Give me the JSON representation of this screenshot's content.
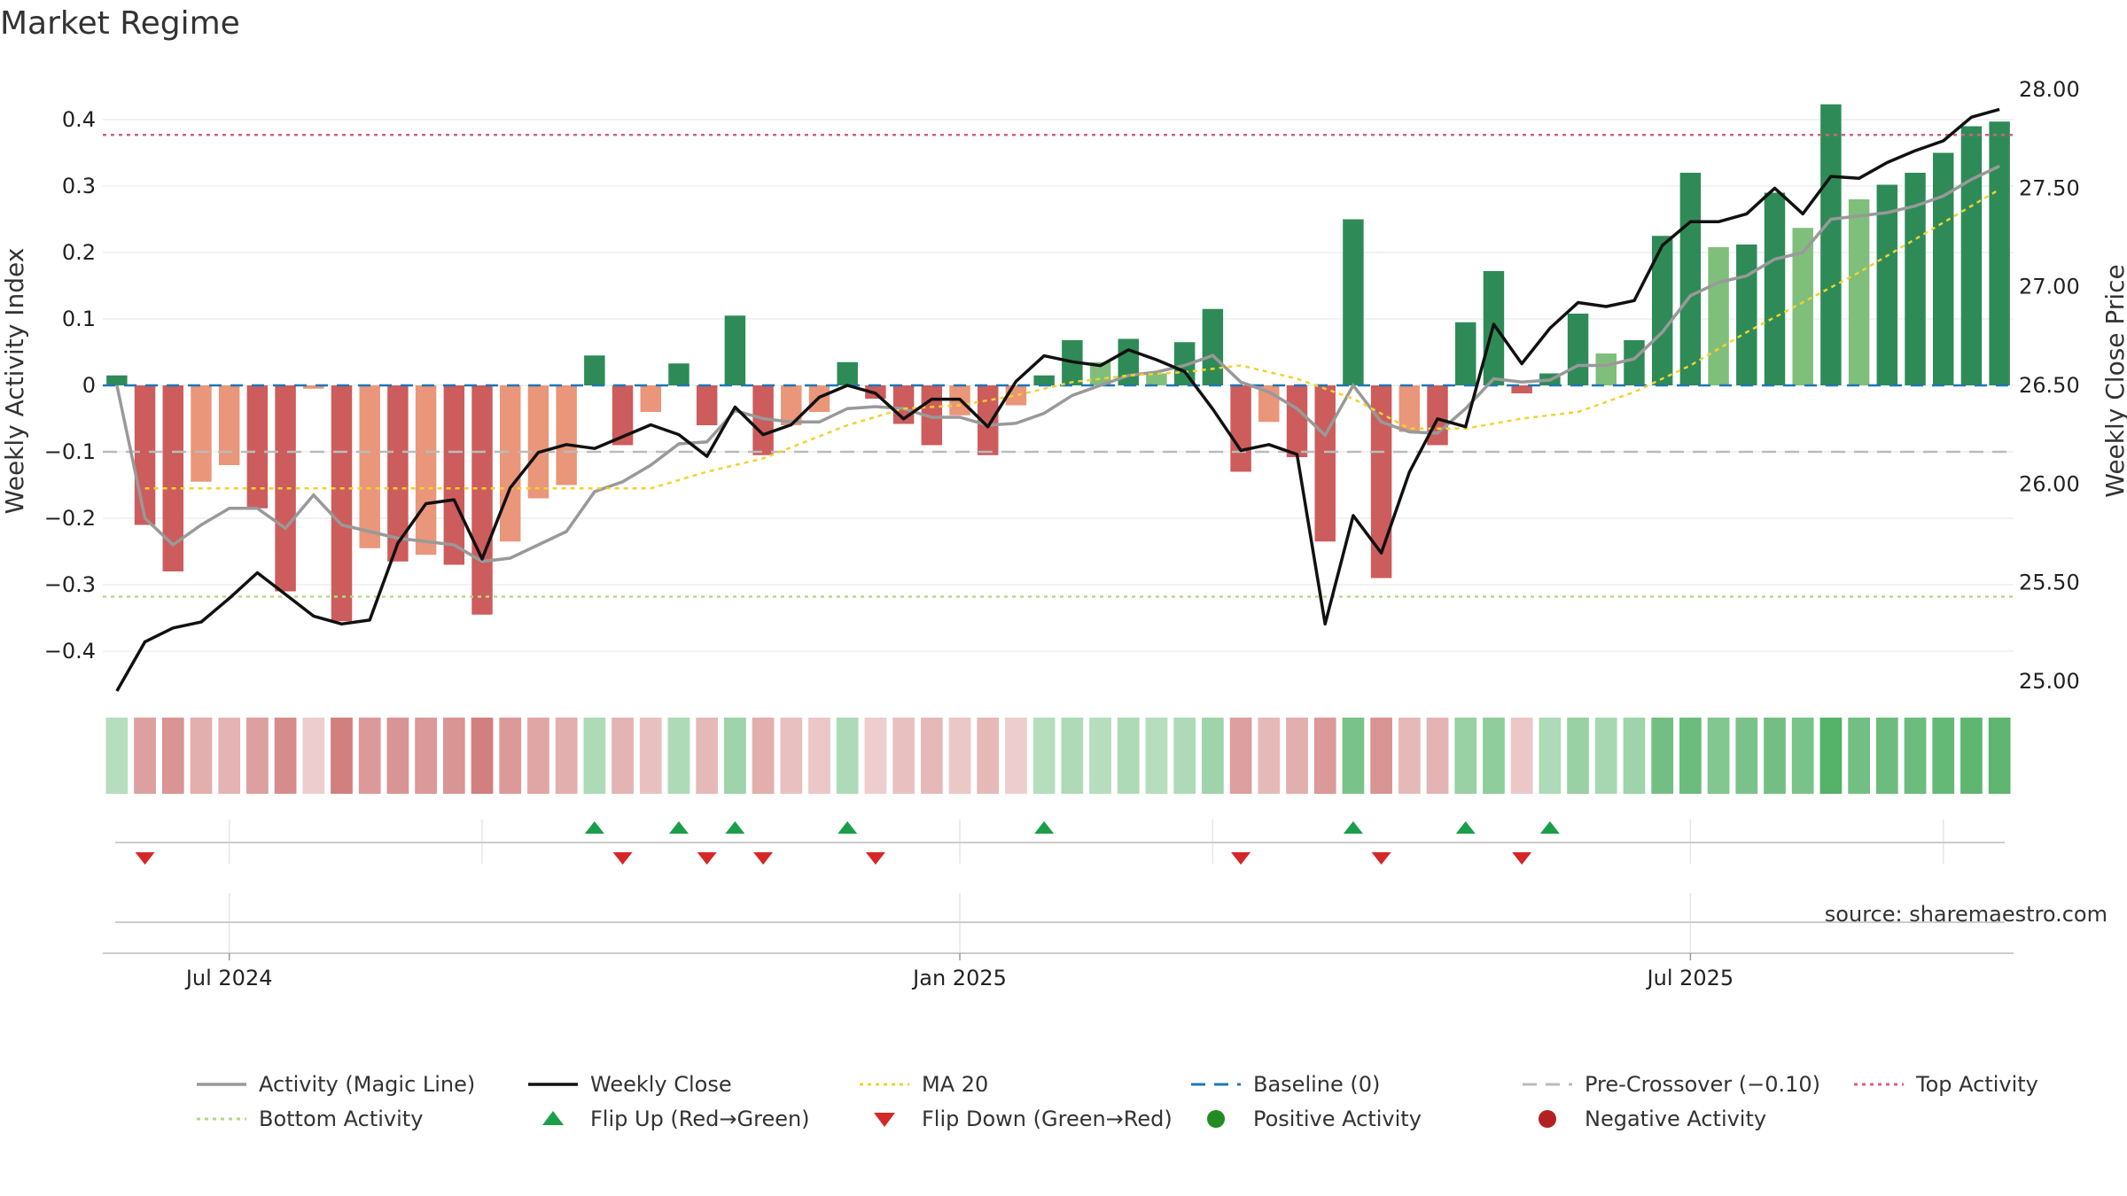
{
  "title": "Market Regime",
  "source": "source: sharemaestro.com",
  "colors": {
    "strong_green": "#2e8b57",
    "light_green": "#7fbf7b",
    "strong_red": "#cd5c5c",
    "light_red": "#e9967a",
    "activity_line": "#999999",
    "close_line": "#111111",
    "ma_line": "#f2d22e",
    "baseline": "#1f77b4",
    "pre_crossover": "#bbbbbb",
    "top_activity": "#d9607a",
    "bottom_activity": "#b5d98a",
    "flip_up": "#1a9e4a",
    "flip_down": "#d62728",
    "positive_dot": "#228b22",
    "negative_dot": "#b22222"
  },
  "chart_data": {
    "type": "bar",
    "title": "Market Regime",
    "ylabel": "Weekly Activity Index",
    "y2label": "Weekly Close Price",
    "ylim": [
      -0.46,
      0.46
    ],
    "y2lim": [
      24.95,
      28.05
    ],
    "yticks": [
      {
        "v": -0.4,
        "t": "−0.4"
      },
      {
        "v": -0.3,
        "t": "−0.3"
      },
      {
        "v": -0.2,
        "t": "−0.2"
      },
      {
        "v": -0.1,
        "t": "−0.1"
      },
      {
        "v": 0,
        "t": "0"
      },
      {
        "v": 0.1,
        "t": "0.1"
      },
      {
        "v": 0.2,
        "t": "0.2"
      },
      {
        "v": 0.3,
        "t": "0.3"
      },
      {
        "v": 0.4,
        "t": "0.4"
      }
    ],
    "y2ticks": [
      {
        "v": 25.0,
        "t": "25.00"
      },
      {
        "v": 25.5,
        "t": "25.50"
      },
      {
        "v": 26.0,
        "t": "26.00"
      },
      {
        "v": 26.5,
        "t": "26.50"
      },
      {
        "v": 27.0,
        "t": "27.00"
      },
      {
        "v": 27.5,
        "t": "27.50"
      },
      {
        "v": 28.0,
        "t": "28.00"
      }
    ],
    "xticks": [
      {
        "i": 4,
        "t": "Jul 2024"
      },
      {
        "i": 30,
        "t": "Jan 2025"
      },
      {
        "i": 56,
        "t": "Jul 2025"
      }
    ],
    "bars": [
      {
        "v": 0.015,
        "c": "strong_green"
      },
      {
        "v": -0.21,
        "c": "strong_red"
      },
      {
        "v": -0.28,
        "c": "strong_red"
      },
      {
        "v": -0.145,
        "c": "light_red"
      },
      {
        "v": -0.12,
        "c": "light_red"
      },
      {
        "v": -0.185,
        "c": "strong_red"
      },
      {
        "v": -0.31,
        "c": "strong_red"
      },
      {
        "v": -0.005,
        "c": "light_red"
      },
      {
        "v": -0.355,
        "c": "strong_red"
      },
      {
        "v": -0.245,
        "c": "light_red"
      },
      {
        "v": -0.265,
        "c": "strong_red"
      },
      {
        "v": -0.255,
        "c": "light_red"
      },
      {
        "v": -0.27,
        "c": "strong_red"
      },
      {
        "v": -0.345,
        "c": "strong_red"
      },
      {
        "v": -0.235,
        "c": "light_red"
      },
      {
        "v": -0.17,
        "c": "light_red"
      },
      {
        "v": -0.15,
        "c": "light_red"
      },
      {
        "v": 0.045,
        "c": "strong_green"
      },
      {
        "v": -0.09,
        "c": "strong_red"
      },
      {
        "v": -0.04,
        "c": "light_red"
      },
      {
        "v": 0.033,
        "c": "strong_green"
      },
      {
        "v": -0.06,
        "c": "strong_red"
      },
      {
        "v": 0.105,
        "c": "strong_green"
      },
      {
        "v": -0.105,
        "c": "strong_red"
      },
      {
        "v": -0.06,
        "c": "light_red"
      },
      {
        "v": -0.04,
        "c": "light_red"
      },
      {
        "v": 0.035,
        "c": "strong_green"
      },
      {
        "v": -0.02,
        "c": "strong_red"
      },
      {
        "v": -0.058,
        "c": "strong_red"
      },
      {
        "v": -0.09,
        "c": "strong_red"
      },
      {
        "v": -0.045,
        "c": "light_red"
      },
      {
        "v": -0.105,
        "c": "strong_red"
      },
      {
        "v": -0.03,
        "c": "light_red"
      },
      {
        "v": 0.015,
        "c": "strong_green"
      },
      {
        "v": 0.068,
        "c": "strong_green"
      },
      {
        "v": 0.035,
        "c": "light_green"
      },
      {
        "v": 0.07,
        "c": "strong_green"
      },
      {
        "v": 0.018,
        "c": "light_green"
      },
      {
        "v": 0.065,
        "c": "strong_green"
      },
      {
        "v": 0.115,
        "c": "strong_green"
      },
      {
        "v": -0.13,
        "c": "strong_red"
      },
      {
        "v": -0.055,
        "c": "light_red"
      },
      {
        "v": -0.108,
        "c": "strong_red"
      },
      {
        "v": -0.235,
        "c": "strong_red"
      },
      {
        "v": 0.25,
        "c": "strong_green"
      },
      {
        "v": -0.29,
        "c": "strong_red"
      },
      {
        "v": -0.07,
        "c": "light_red"
      },
      {
        "v": -0.09,
        "c": "strong_red"
      },
      {
        "v": 0.095,
        "c": "strong_green"
      },
      {
        "v": 0.172,
        "c": "strong_green"
      },
      {
        "v": -0.012,
        "c": "strong_red"
      },
      {
        "v": 0.018,
        "c": "strong_green"
      },
      {
        "v": 0.108,
        "c": "strong_green"
      },
      {
        "v": 0.048,
        "c": "light_green"
      },
      {
        "v": 0.068,
        "c": "strong_green"
      },
      {
        "v": 0.225,
        "c": "strong_green"
      },
      {
        "v": 0.32,
        "c": "strong_green"
      },
      {
        "v": 0.208,
        "c": "light_green"
      },
      {
        "v": 0.212,
        "c": "strong_green"
      },
      {
        "v": 0.29,
        "c": "strong_green"
      },
      {
        "v": 0.237,
        "c": "light_green"
      },
      {
        "v": 0.423,
        "c": "strong_green"
      },
      {
        "v": 0.28,
        "c": "light_green"
      },
      {
        "v": 0.302,
        "c": "strong_green"
      },
      {
        "v": 0.32,
        "c": "strong_green"
      },
      {
        "v": 0.35,
        "c": "strong_green"
      },
      {
        "v": 0.39,
        "c": "strong_green"
      },
      {
        "v": 0.397,
        "c": "strong_green"
      }
    ],
    "activity_line": [
      0.0,
      -0.2,
      -0.24,
      -0.21,
      -0.185,
      -0.185,
      -0.215,
      -0.165,
      -0.21,
      -0.22,
      -0.23,
      -0.235,
      -0.24,
      -0.265,
      -0.26,
      -0.24,
      -0.22,
      -0.16,
      -0.145,
      -0.12,
      -0.088,
      -0.085,
      -0.038,
      -0.05,
      -0.055,
      -0.055,
      -0.035,
      -0.032,
      -0.035,
      -0.048,
      -0.048,
      -0.06,
      -0.057,
      -0.042,
      -0.015,
      0.0,
      0.015,
      0.02,
      0.03,
      0.045,
      0.005,
      -0.01,
      -0.035,
      -0.075,
      0.0,
      -0.055,
      -0.07,
      -0.072,
      -0.035,
      0.01,
      0.005,
      0.008,
      0.03,
      0.03,
      0.04,
      0.08,
      0.135,
      0.155,
      0.165,
      0.19,
      0.2,
      0.25,
      0.255,
      0.26,
      0.27,
      0.285,
      0.31,
      0.33
    ],
    "weekly_close": [
      24.95,
      25.2,
      25.27,
      25.3,
      25.42,
      25.55,
      25.44,
      25.33,
      25.29,
      25.31,
      25.7,
      25.9,
      25.92,
      25.62,
      25.98,
      26.16,
      26.2,
      26.18,
      26.24,
      26.3,
      26.25,
      26.14,
      26.39,
      26.25,
      26.3,
      26.44,
      26.5,
      26.46,
      26.33,
      26.43,
      26.43,
      26.29,
      26.52,
      26.65,
      26.62,
      26.6,
      26.68,
      26.63,
      26.57,
      26.38,
      26.17,
      26.2,
      26.15,
      25.29,
      25.84,
      25.65,
      26.06,
      26.33,
      26.29,
      26.81,
      26.61,
      26.79,
      26.92,
      26.9,
      26.93,
      27.21,
      27.33,
      27.33,
      27.37,
      27.5,
      27.37,
      27.56,
      27.55,
      27.63,
      27.69,
      27.74,
      27.86,
      27.9
    ],
    "ma20": [
      {
        "i": 1,
        "v": -0.155
      },
      {
        "i": 19,
        "v": -0.155
      },
      {
        "i": 21,
        "v": -0.13
      },
      {
        "i": 23,
        "v": -0.11
      },
      {
        "i": 26,
        "v": -0.06
      },
      {
        "i": 28,
        "v": -0.035
      },
      {
        "i": 30,
        "v": -0.03
      },
      {
        "i": 32,
        "v": -0.015
      },
      {
        "i": 34,
        "v": 0.005
      },
      {
        "i": 36,
        "v": 0.015
      },
      {
        "i": 38,
        "v": 0.02
      },
      {
        "i": 40,
        "v": 0.03
      },
      {
        "i": 42,
        "v": 0.01
      },
      {
        "i": 44,
        "v": -0.02
      },
      {
        "i": 46,
        "v": -0.065
      },
      {
        "i": 48,
        "v": -0.065
      },
      {
        "i": 50,
        "v": -0.05
      },
      {
        "i": 52,
        "v": -0.04
      },
      {
        "i": 54,
        "v": -0.01
      },
      {
        "i": 56,
        "v": 0.03
      },
      {
        "i": 58,
        "v": 0.08
      },
      {
        "i": 60,
        "v": 0.125
      },
      {
        "i": 62,
        "v": 0.17
      },
      {
        "i": 64,
        "v": 0.22
      },
      {
        "i": 66,
        "v": 0.27
      },
      {
        "i": 67,
        "v": 0.295
      }
    ],
    "baseline": 0,
    "pre_crossover": -0.1,
    "top_activity": 0.377,
    "bottom_activity": -0.318,
    "heat_cells": [
      0.15,
      -0.45,
      -0.55,
      -0.35,
      -0.3,
      -0.45,
      -0.6,
      -0.1,
      -0.7,
      -0.5,
      -0.55,
      -0.5,
      -0.55,
      -0.7,
      -0.5,
      -0.4,
      -0.35,
      0.2,
      -0.3,
      -0.2,
      0.2,
      -0.25,
      0.3,
      -0.35,
      -0.2,
      -0.15,
      0.2,
      -0.1,
      -0.2,
      -0.25,
      -0.15,
      -0.25,
      -0.1,
      0.15,
      0.2,
      0.15,
      0.2,
      0.15,
      0.2,
      0.3,
      -0.45,
      -0.25,
      -0.35,
      -0.5,
      0.55,
      -0.55,
      -0.25,
      -0.3,
      0.35,
      0.4,
      -0.15,
      0.2,
      0.35,
      0.25,
      0.3,
      0.6,
      0.65,
      0.5,
      0.55,
      0.6,
      0.55,
      0.8,
      0.6,
      0.65,
      0.65,
      0.7,
      0.75,
      0.75
    ],
    "flip_up": [
      17,
      20,
      22,
      26,
      33,
      44,
      48,
      51
    ],
    "flip_down": [
      1,
      18,
      21,
      23,
      27,
      40,
      45,
      50
    ]
  },
  "legend": [
    {
      "label": "Activity (Magic Line)",
      "kind": "solid",
      "color": "activity_line"
    },
    {
      "label": "Weekly Close",
      "kind": "solid",
      "color": "close_line"
    },
    {
      "label": "MA 20",
      "kind": "dotted",
      "color": "ma_line"
    },
    {
      "label": "Baseline (0)",
      "kind": "dashed",
      "color": "baseline"
    },
    {
      "label": "Pre-Crossover (−0.10)",
      "kind": "dashed",
      "color": "pre_crossover"
    },
    {
      "label": "Top Activity",
      "kind": "dotted",
      "color": "top_activity"
    },
    {
      "label": "Bottom Activity",
      "kind": "dotted",
      "color": "bottom_activity"
    },
    {
      "label": "Flip Up (Red→Green)",
      "kind": "tri-up",
      "color": "flip_up"
    },
    {
      "label": "Flip Down (Green→Red)",
      "kind": "tri-down",
      "color": "flip_down"
    },
    {
      "label": "Positive Activity",
      "kind": "dot",
      "color": "positive_dot"
    },
    {
      "label": "Negative Activity",
      "kind": "dot",
      "color": "negative_dot"
    }
  ]
}
